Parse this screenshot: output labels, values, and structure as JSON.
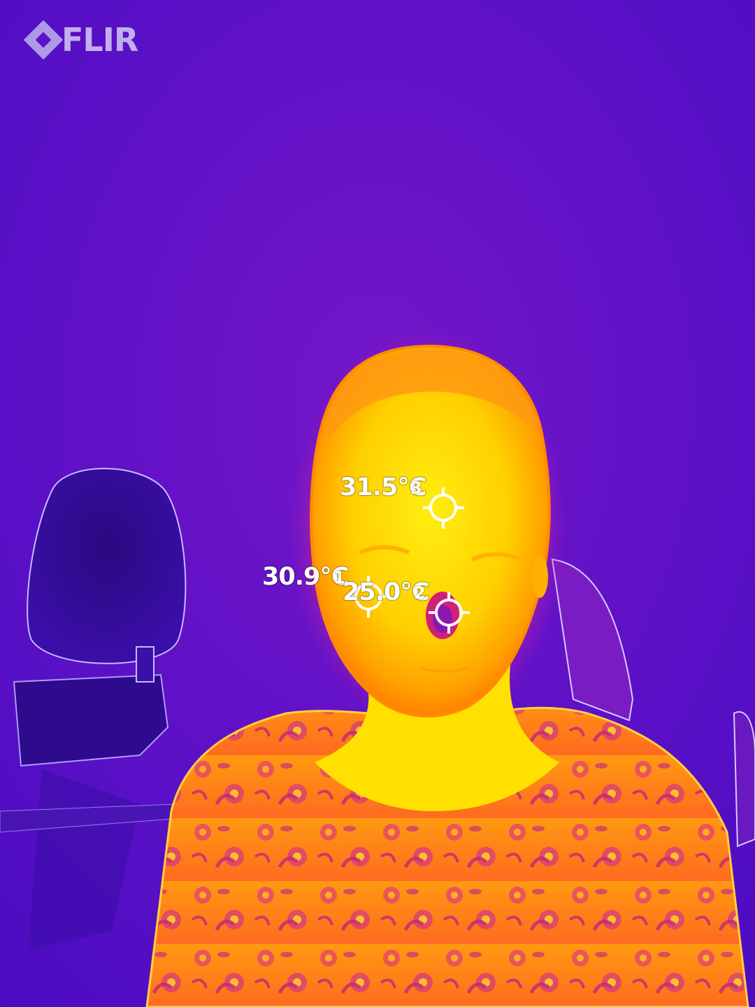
{
  "app": {
    "logo_text": "FLIR"
  },
  "palette": {
    "background": "#5b12c8",
    "cold": "#2a0a7a",
    "warm": "#d21a7c",
    "hot": "#ff8a00",
    "hottest": "#ffe400",
    "marker": "#ffffff"
  },
  "measurements": [
    {
      "value": "31.5°C",
      "index": "3"
    },
    {
      "value": "30.9°C",
      "index": "1"
    },
    {
      "value": "25.0°C",
      "index": "2"
    }
  ]
}
